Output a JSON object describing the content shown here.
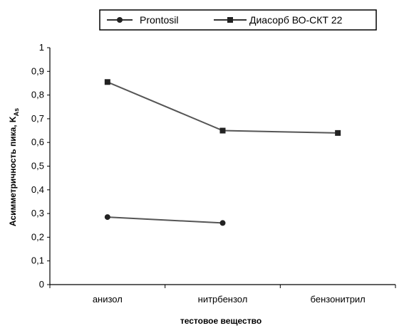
{
  "chart_data": {
    "type": "line",
    "categories": [
      "анизол",
      "нитрбензол",
      "бензонитрил"
    ],
    "series": [
      {
        "name": "Prontosil",
        "values": [
          0.285,
          0.26,
          null
        ],
        "color": "#555555",
        "marker": "circle"
      },
      {
        "name": "Диасорб ВО-СКТ 22",
        "values": [
          0.855,
          0.65,
          0.64
        ],
        "color": "#555555",
        "marker": "square"
      }
    ],
    "xlabel": "тестовое вещество",
    "ylabel": "Асимметричность пика, K",
    "ylabel_sub": "As",
    "ylim": [
      0,
      1
    ],
    "yticks": [
      "0",
      "0,1",
      "0,2",
      "0,3",
      "0,4",
      "0,5",
      "0,6",
      "0,7",
      "0,8",
      "0,9",
      "1"
    ],
    "grid": false,
    "legend_position": "top"
  }
}
